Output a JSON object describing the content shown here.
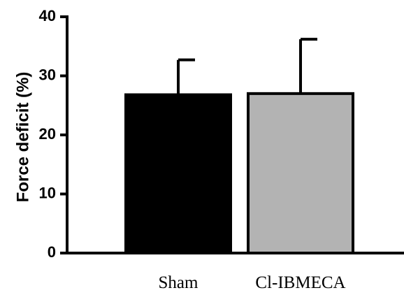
{
  "chart_data": {
    "type": "bar",
    "categories": [
      "Sham",
      "Cl-IBMECA"
    ],
    "values": [
      26.8,
      27.0
    ],
    "errors": [
      5.9,
      9.2
    ],
    "bar_colors": [
      "#000000",
      "#b3b3b3"
    ],
    "error_direction": "upper",
    "title": "",
    "xlabel": "",
    "ylabel": "Force deficit (%)",
    "ylim": [
      0,
      40
    ],
    "yticks": [
      0,
      10,
      20,
      30,
      40
    ],
    "grid": false,
    "legend": "none"
  }
}
